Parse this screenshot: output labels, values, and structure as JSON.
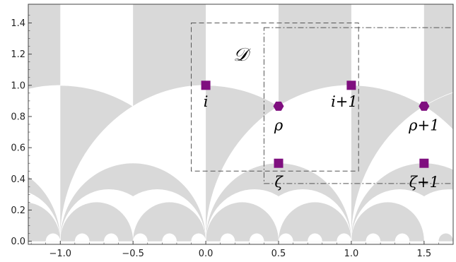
{
  "figure": {
    "x_ticks": [
      "−1.0",
      "−0.5",
      "0.0",
      "0.5",
      "1.0",
      "1.5"
    ],
    "y_ticks": [
      "0.0",
      "0.2",
      "0.4",
      "0.6",
      "0.8",
      "1.0",
      "1.2",
      "1.4"
    ],
    "domain_symbol": "𝒟",
    "colors": {
      "shade": "#d9d9d9",
      "marker": "#7f0f7f",
      "box": "#555555"
    },
    "points": [
      {
        "label": "i",
        "x": 0.0,
        "y": 1.0,
        "shape": "square"
      },
      {
        "label": "i+1",
        "x": 1.0,
        "y": 1.0,
        "shape": "square"
      },
      {
        "label": "ρ",
        "x": 0.5,
        "y": 0.866,
        "shape": "hexagon"
      },
      {
        "label": "ρ+1",
        "x": 1.5,
        "y": 0.866,
        "shape": "hexagon"
      },
      {
        "label": "ζ",
        "x": 0.5,
        "y": 0.5,
        "shape": "square"
      },
      {
        "label": "ζ+1",
        "x": 1.5,
        "y": 0.5,
        "shape": "square"
      }
    ],
    "x_range": [
      -1.22,
      1.7
    ],
    "y_range": [
      -0.02,
      1.52
    ],
    "dashed_box": {
      "x": [
        -0.1,
        1.05
      ],
      "y": [
        0.45,
        1.4
      ]
    },
    "dashdot_box": {
      "x": [
        0.4,
        1.7
      ],
      "y": [
        0.37,
        1.37
      ]
    }
  }
}
